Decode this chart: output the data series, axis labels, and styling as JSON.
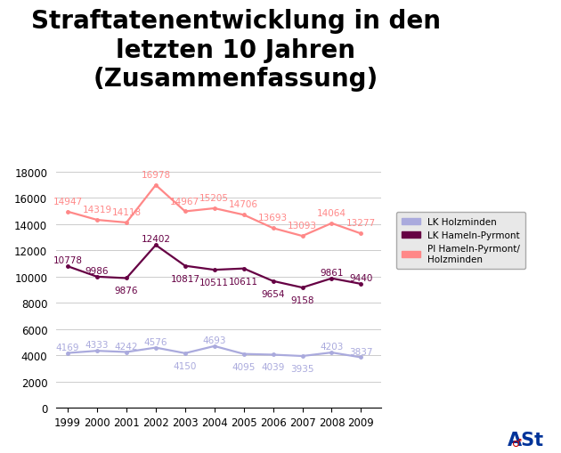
{
  "title": "Straftatenentwicklung in den\nletzten 10 Jahren\n(Zusammenfassung)",
  "years": [
    1999,
    2000,
    2001,
    2002,
    2003,
    2004,
    2005,
    2006,
    2007,
    2008,
    2009
  ],
  "lk_holzminden": [
    4169,
    4333,
    4242,
    4576,
    4150,
    4693,
    4095,
    4039,
    3935,
    4203,
    3837
  ],
  "lk_hameln_pyrmont": [
    10778,
    9986,
    9876,
    12402,
    10817,
    10511,
    10611,
    9654,
    9158,
    9861,
    9440
  ],
  "pi_hameln_pyrmont_holzminden": [
    14947,
    14319,
    14118,
    16978,
    14967,
    15205,
    14706,
    13693,
    13093,
    14064,
    13277
  ],
  "color_holzminden": "#aaaadd",
  "color_hameln": "#660044",
  "color_pi": "#ff8888",
  "legend_labels": [
    "LK Holzminden",
    "LK Hameln-Pyrmont",
    "PI Hameln-Pyrmont/\nHolzminden"
  ],
  "legend_bg": "#e8e8e8",
  "ylim": [
    0,
    18000
  ],
  "yticks": [
    0,
    2000,
    4000,
    6000,
    8000,
    10000,
    12000,
    14000,
    16000,
    18000
  ],
  "background_color": "#ffffff",
  "title_fontsize": 20,
  "label_fontsize": 7.5,
  "tick_fontsize": 8.5
}
